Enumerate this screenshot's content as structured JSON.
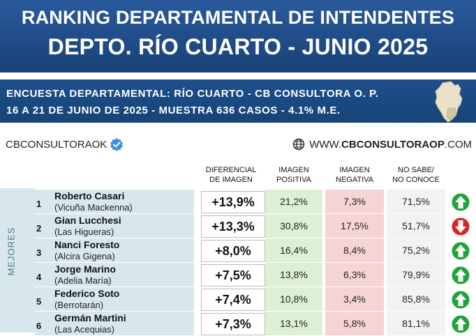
{
  "header": {
    "title_line1": "RANKING DEPARTAMENTAL DE INTENDENTES",
    "title_line2": "DEPTO. RÍO CUARTO - JUNIO 2025"
  },
  "survey": {
    "line1": "ENCUESTA DEPARTAMENTAL: RÍO CUARTO - CB CONSULTORA O. P.",
    "line2": "16 A 21 DE JUNIO  DE 2025 - MUESTRA 636 CASOS - 4.1% M.E."
  },
  "brand": {
    "handle": "CBCONSULTORAOK",
    "website_prefix": "WWW.",
    "website_main": "CBCONSULTORAOP",
    "website_suffix": ".COM"
  },
  "columns": {
    "dif_line1": "DIFERENCIAL",
    "dif_line2": "DE IMAGEN",
    "pos_line1": "IMAGEN",
    "pos_line2": "POSITIVA",
    "neg_line1": "IMAGEN",
    "neg_line2": "NEGATIVA",
    "ns_line1": "NO SABE/",
    "ns_line2": "NO CONOCE"
  },
  "section_label": "MEJORES",
  "colors": {
    "banner": "#1f4b86",
    "positive_bg": "#ddefd5",
    "negative_bg": "#f7d4d4",
    "up_arrow": "#22a33a",
    "down_arrow": "#d62828"
  },
  "rows": [
    {
      "rank": "1",
      "name": "Roberto Casari",
      "place": "(Vicuña Mackenna)",
      "dif": "+13,9%",
      "pos": "21,2%",
      "neg": "7,3%",
      "ns": "71,5%",
      "trend": "up-arrow-icon"
    },
    {
      "rank": "2",
      "name": "Gian Lucchesi",
      "place": "(Las Higueras)",
      "dif": "+13,3%",
      "pos": "30,8%",
      "neg": "17,5%",
      "ns": "51,7%",
      "trend": "down-arrow-icon"
    },
    {
      "rank": "3",
      "name": "Nanci Foresto",
      "place": "(Alcira Gigena)",
      "dif": "+8,0%",
      "pos": "16,4%",
      "neg": "8,4%",
      "ns": "75,2%",
      "trend": "up-arrow-icon"
    },
    {
      "rank": "4",
      "name": "Jorge Marino",
      "place": "(Adelia María)",
      "dif": "+7,5%",
      "pos": "13,8%",
      "neg": "6,3%",
      "ns": "79,9%",
      "trend": "up-arrow-icon"
    },
    {
      "rank": "5",
      "name": "Federico Soto",
      "place": "(Berrotarán)",
      "dif": "+7,4%",
      "pos": "10,8%",
      "neg": "3,4%",
      "ns": "85,8%",
      "trend": "up-arrow-icon"
    },
    {
      "rank": "6",
      "name": "Germán Martini",
      "place": "(Las Acequias)",
      "dif": "+7,3%",
      "pos": "13,1%",
      "neg": "5,8%",
      "ns": "81,1%",
      "trend": "up-arrow-icon"
    }
  ]
}
